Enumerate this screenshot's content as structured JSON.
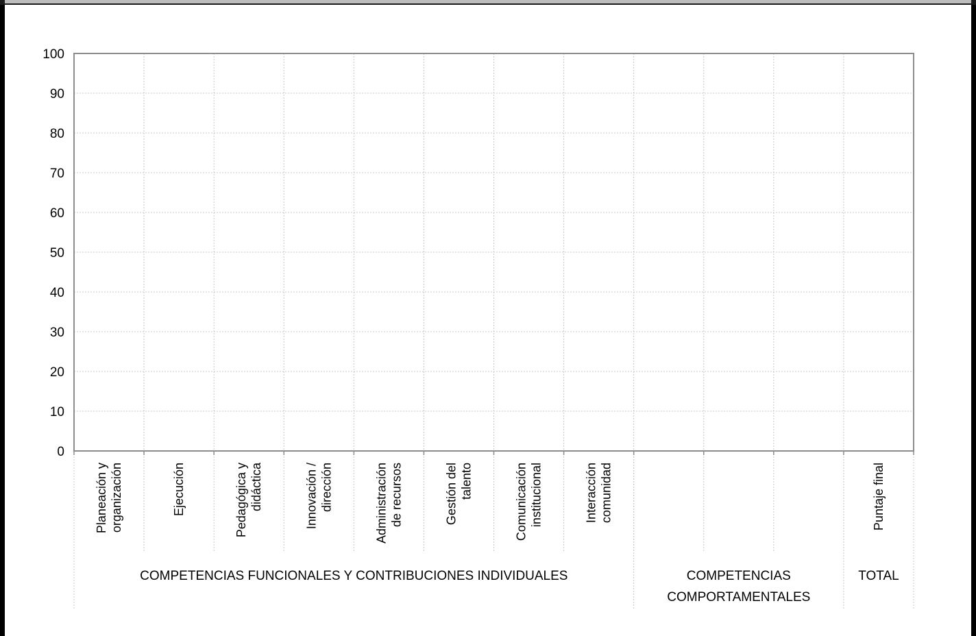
{
  "chart_data": {
    "type": "bar",
    "title": "",
    "xlabel": "",
    "ylabel": "",
    "ylim": [
      0,
      100
    ],
    "yticks": [
      0,
      10,
      20,
      30,
      40,
      50,
      60,
      70,
      80,
      90,
      100
    ],
    "grid": true,
    "categories": [
      {
        "lines": [
          "Planeación y",
          "organización"
        ]
      },
      {
        "lines": [
          "Ejecución"
        ]
      },
      {
        "lines": [
          "Pedagógica y",
          "didáctica"
        ]
      },
      {
        "lines": [
          "Innovación /",
          "dirección"
        ]
      },
      {
        "lines": [
          "Administración",
          "de recursos"
        ]
      },
      {
        "lines": [
          "Gestión del",
          "talento"
        ]
      },
      {
        "lines": [
          "Comunicación",
          "institucional"
        ]
      },
      {
        "lines": [
          "Interacción",
          "comunidad"
        ]
      },
      {
        "lines": []
      },
      {
        "lines": []
      },
      {
        "lines": []
      },
      {
        "lines": [
          "Puntaje final"
        ]
      }
    ],
    "values": [
      null,
      null,
      null,
      null,
      null,
      null,
      null,
      null,
      null,
      null,
      null,
      null
    ],
    "groups": [
      {
        "lines": [
          "COMPETENCIAS FUNCIONALES Y CONTRIBUCIONES INDIVIDUALES"
        ],
        "start": 0,
        "end": 8
      },
      {
        "lines": [
          "COMPETENCIAS",
          "COMPORTAMENTALES"
        ],
        "start": 8,
        "end": 11
      },
      {
        "lines": [
          "TOTAL"
        ],
        "start": 11,
        "end": 12
      }
    ]
  }
}
